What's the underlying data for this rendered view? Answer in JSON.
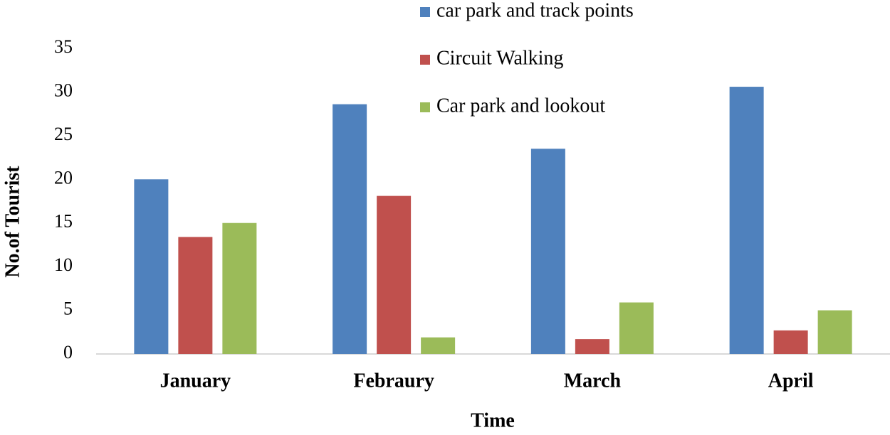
{
  "chart_data": {
    "type": "bar",
    "x_label": "Time",
    "y_label": "No.of Tourist",
    "categories": [
      "January",
      "Febraury",
      "March",
      "April"
    ],
    "series": [
      {
        "name": "car park and track points",
        "color": "#4f81bd",
        "values": [
          20.0,
          28.6,
          23.5,
          30.6
        ]
      },
      {
        "name": "Circuit Walking",
        "color": "#c0504d",
        "values": [
          13.4,
          18.1,
          1.7,
          2.7
        ]
      },
      {
        "name": "Car park and lookout",
        "color": "#9bbb59",
        "values": [
          15.0,
          1.9,
          5.9,
          5.0
        ]
      }
    ],
    "ylim": [
      0,
      35
    ],
    "yticks": [
      0,
      5,
      10,
      15,
      20,
      25,
      30,
      35
    ],
    "grid": false,
    "legend": "top"
  }
}
